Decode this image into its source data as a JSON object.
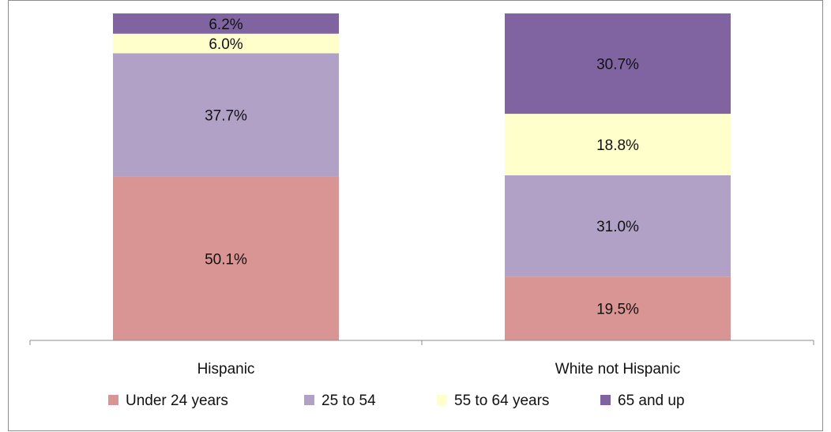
{
  "chart_data": {
    "type": "bar",
    "stacked": true,
    "normalized": true,
    "categories": [
      "Hispanic",
      "White not Hispanic"
    ],
    "series": [
      {
        "name": "Under 24 years",
        "values": [
          50.1,
          19.5
        ],
        "labels": [
          "50.1%",
          "19.5%"
        ],
        "color": "#d99594"
      },
      {
        "name": "25 to 54",
        "values": [
          37.7,
          31.0
        ],
        "labels": [
          "37.7%",
          "31.0%"
        ],
        "color": "#b2a1c7"
      },
      {
        "name": "55 to 64 years",
        "values": [
          6.0,
          18.8
        ],
        "labels": [
          "6.0%",
          "18.8%"
        ],
        "color": "#ffffcc"
      },
      {
        "name": "65 and up",
        "values": [
          6.2,
          30.7
        ],
        "labels": [
          "6.2%",
          "30.7%"
        ],
        "color": "#8064a2"
      }
    ],
    "ylim": [
      0,
      100
    ],
    "grid": false,
    "legend_position": "bottom"
  }
}
